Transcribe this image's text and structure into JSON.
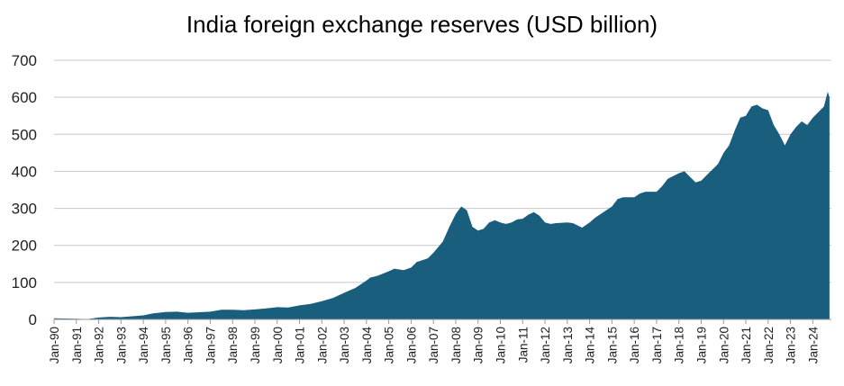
{
  "chart_data": {
    "type": "area",
    "title": "India foreign exchange reserves (USD billion)",
    "xlabel": "",
    "ylabel": "",
    "ylim": [
      0,
      700
    ],
    "yticks": [
      "0",
      "100",
      "200",
      "300",
      "400",
      "500",
      "600",
      "700"
    ],
    "grid": true,
    "legend": "none",
    "color": "#1a5e7e",
    "x_tick_labels": [
      "Jan-90",
      "Jan-91",
      "Jan-92",
      "Jan-93",
      "Jan-94",
      "Jan-95",
      "Jan-96",
      "Jan-97",
      "Jan-98",
      "Jan-99",
      "Jan-00",
      "Jan-01",
      "Jan-02",
      "Jan-03",
      "Jan-04",
      "Jan-05",
      "Jan-06",
      "Jan-07",
      "Jan-08",
      "Jan-09",
      "Jan-10",
      "Jan-11",
      "Jan-12",
      "Jan-13",
      "Jan-14",
      "Jan-15",
      "Jan-16",
      "Jan-17",
      "Jan-18",
      "Jan-19",
      "Jan-20",
      "Jan-21",
      "Jan-22",
      "Jan-23",
      "Jan-24"
    ],
    "series": [
      {
        "values": [
          [
            "1990-01",
            3
          ],
          [
            "1991-01",
            2
          ],
          [
            "1991-07",
            1
          ],
          [
            "1992-01",
            5
          ],
          [
            "1992-07",
            7
          ],
          [
            "1993-01",
            6
          ],
          [
            "1994-01",
            11
          ],
          [
            "1994-06",
            16
          ],
          [
            "1995-01",
            20
          ],
          [
            "1995-07",
            21
          ],
          [
            "1996-01",
            18
          ],
          [
            "1997-01",
            21
          ],
          [
            "1997-07",
            26
          ],
          [
            "1998-01",
            26
          ],
          [
            "1998-07",
            25
          ],
          [
            "1999-01",
            27
          ],
          [
            "1999-07",
            30
          ],
          [
            "2000-01",
            33
          ],
          [
            "2000-07",
            32
          ],
          [
            "2001-01",
            38
          ],
          [
            "2001-07",
            42
          ],
          [
            "2002-01",
            49
          ],
          [
            "2002-07",
            58
          ],
          [
            "2003-01",
            72
          ],
          [
            "2003-07",
            85
          ],
          [
            "2004-01",
            105
          ],
          [
            "2004-03",
            113
          ],
          [
            "2004-07",
            118
          ],
          [
            "2005-01",
            130
          ],
          [
            "2005-04",
            137
          ],
          [
            "2005-09",
            133
          ],
          [
            "2006-01",
            140
          ],
          [
            "2006-04",
            155
          ],
          [
            "2006-10",
            165
          ],
          [
            "2007-01",
            180
          ],
          [
            "2007-06",
            210
          ],
          [
            "2007-10",
            255
          ],
          [
            "2008-01",
            285
          ],
          [
            "2008-04",
            305
          ],
          [
            "2008-07",
            295
          ],
          [
            "2008-10",
            250
          ],
          [
            "2009-01",
            240
          ],
          [
            "2009-04",
            245
          ],
          [
            "2009-07",
            262
          ],
          [
            "2009-10",
            268
          ],
          [
            "2010-01",
            262
          ],
          [
            "2010-04",
            258
          ],
          [
            "2010-07",
            262
          ],
          [
            "2010-10",
            270
          ],
          [
            "2011-01",
            272
          ],
          [
            "2011-04",
            283
          ],
          [
            "2011-07",
            290
          ],
          [
            "2011-10",
            280
          ],
          [
            "2012-01",
            262
          ],
          [
            "2012-04",
            258
          ],
          [
            "2012-07",
            260
          ],
          [
            "2013-01",
            262
          ],
          [
            "2013-04",
            260
          ],
          [
            "2013-09",
            248
          ],
          [
            "2014-01",
            262
          ],
          [
            "2014-04",
            275
          ],
          [
            "2014-07",
            285
          ],
          [
            "2015-01",
            305
          ],
          [
            "2015-04",
            325
          ],
          [
            "2015-07",
            330
          ],
          [
            "2016-01",
            330
          ],
          [
            "2016-04",
            340
          ],
          [
            "2016-07",
            345
          ],
          [
            "2017-01",
            345
          ],
          [
            "2017-04",
            360
          ],
          [
            "2017-07",
            380
          ],
          [
            "2018-01",
            395
          ],
          [
            "2018-04",
            400
          ],
          [
            "2018-07",
            385
          ],
          [
            "2018-10",
            370
          ],
          [
            "2019-01",
            375
          ],
          [
            "2019-04",
            390
          ],
          [
            "2019-07",
            405
          ],
          [
            "2019-10",
            420
          ],
          [
            "2020-01",
            450
          ],
          [
            "2020-04",
            470
          ],
          [
            "2020-07",
            510
          ],
          [
            "2020-10",
            545
          ],
          [
            "2021-01",
            550
          ],
          [
            "2021-04",
            575
          ],
          [
            "2021-07",
            580
          ],
          [
            "2021-10",
            570
          ],
          [
            "2022-01",
            565
          ],
          [
            "2022-04",
            525
          ],
          [
            "2022-07",
            500
          ],
          [
            "2022-10",
            470
          ],
          [
            "2023-01",
            500
          ],
          [
            "2023-04",
            520
          ],
          [
            "2023-07",
            535
          ],
          [
            "2023-10",
            525
          ],
          [
            "2024-01",
            545
          ],
          [
            "2024-04",
            560
          ],
          [
            "2024-07",
            575
          ],
          [
            "2024-09",
            615
          ],
          [
            "2024-10",
            600
          ]
        ]
      }
    ]
  }
}
